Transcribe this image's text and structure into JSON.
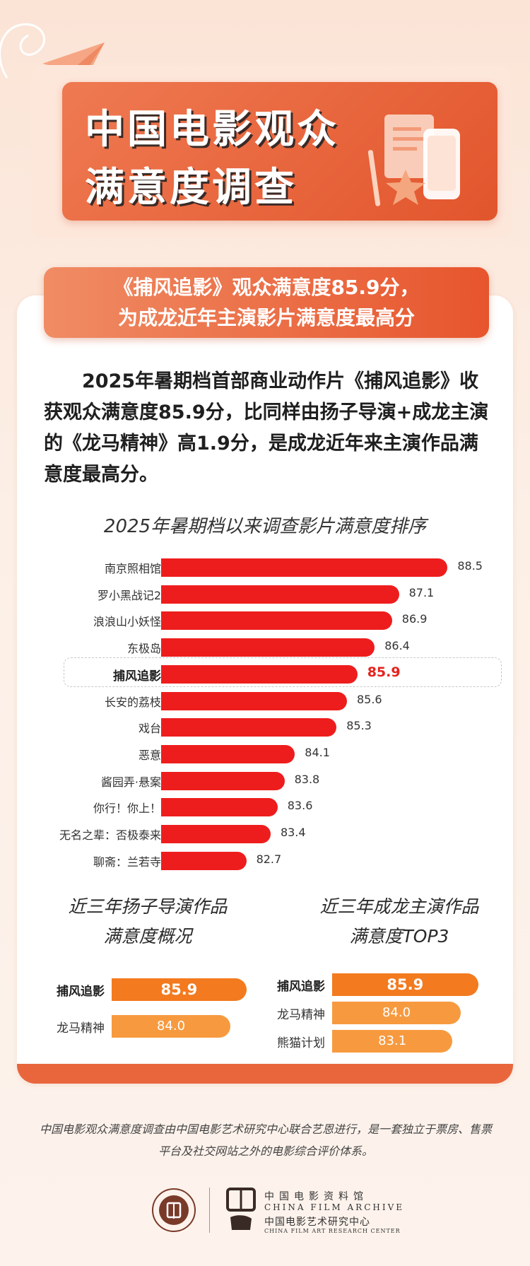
{
  "title": {
    "line1": "中国电影观众",
    "line2": "满意度调查"
  },
  "headline": {
    "line1": "《捕风追影》观众满意度85.9分，",
    "line2": "为成龙近年主演影片满意度最高分"
  },
  "paragraph": "2025年暑期档首部商业动作片《捕风追影》收获观众满意度85.9分，比同样由扬子导演+成龙主演的《龙马精神》高1.9分，是成龙近年来主演作品满意度最高分。",
  "colors": {
    "accent": "#e9663c",
    "bar_red": "#ee1d1d",
    "bar_orange": "#f37a1f",
    "highlight_value": "#e5231d"
  },
  "chart_data": [
    {
      "type": "bar",
      "orientation": "horizontal",
      "title": "2025年暑期档以来调查影片满意度排序",
      "categories": [
        "南京照相馆",
        "罗小黑战记2",
        "浪浪山小妖怪",
        "东极岛",
        "捕风追影",
        "长安的荔枝",
        "戏台",
        "恶意",
        "酱园弄·悬案",
        "你行！你上！",
        "无名之辈：否极泰来",
        "聊斋：兰若寺"
      ],
      "values": [
        88.5,
        87.1,
        86.9,
        86.4,
        85.9,
        85.6,
        85.3,
        84.1,
        83.8,
        83.6,
        83.4,
        82.7
      ],
      "highlight": "捕风追影"
    },
    {
      "type": "bar",
      "orientation": "horizontal",
      "title": "近三年扬子导演作品满意度概况",
      "categories": [
        "捕风追影",
        "龙马精神"
      ],
      "values": [
        85.9,
        84.0
      ],
      "highlight": "捕风追影"
    },
    {
      "type": "bar",
      "orientation": "horizontal",
      "title": "近三年成龙主演作品满意度TOP3",
      "categories": [
        "捕风追影",
        "龙马精神",
        "熊猫计划"
      ],
      "values": [
        85.9,
        84.0,
        83.1
      ],
      "highlight": "捕风追影"
    }
  ],
  "sub_titles": {
    "left_line1": "近三年扬子导演作品",
    "left_line2": "满意度概况",
    "right_line1": "近三年成龙主演作品",
    "right_line2": "满意度TOP3"
  },
  "footnote": "中国电影观众满意度调查由中国电影艺术研究中心联合艺恩进行，是一套独立于票房、售票平台及社交网站之外的电影综合评价体系。",
  "logos": {
    "org_cn_1": "中国电影资料馆",
    "org_en_1": "CHINA FILM ARCHIVE",
    "org_cn_2": "中国电影艺术研究中心",
    "org_en_2": "CHINA FILM ART RESEARCH CENTER"
  }
}
